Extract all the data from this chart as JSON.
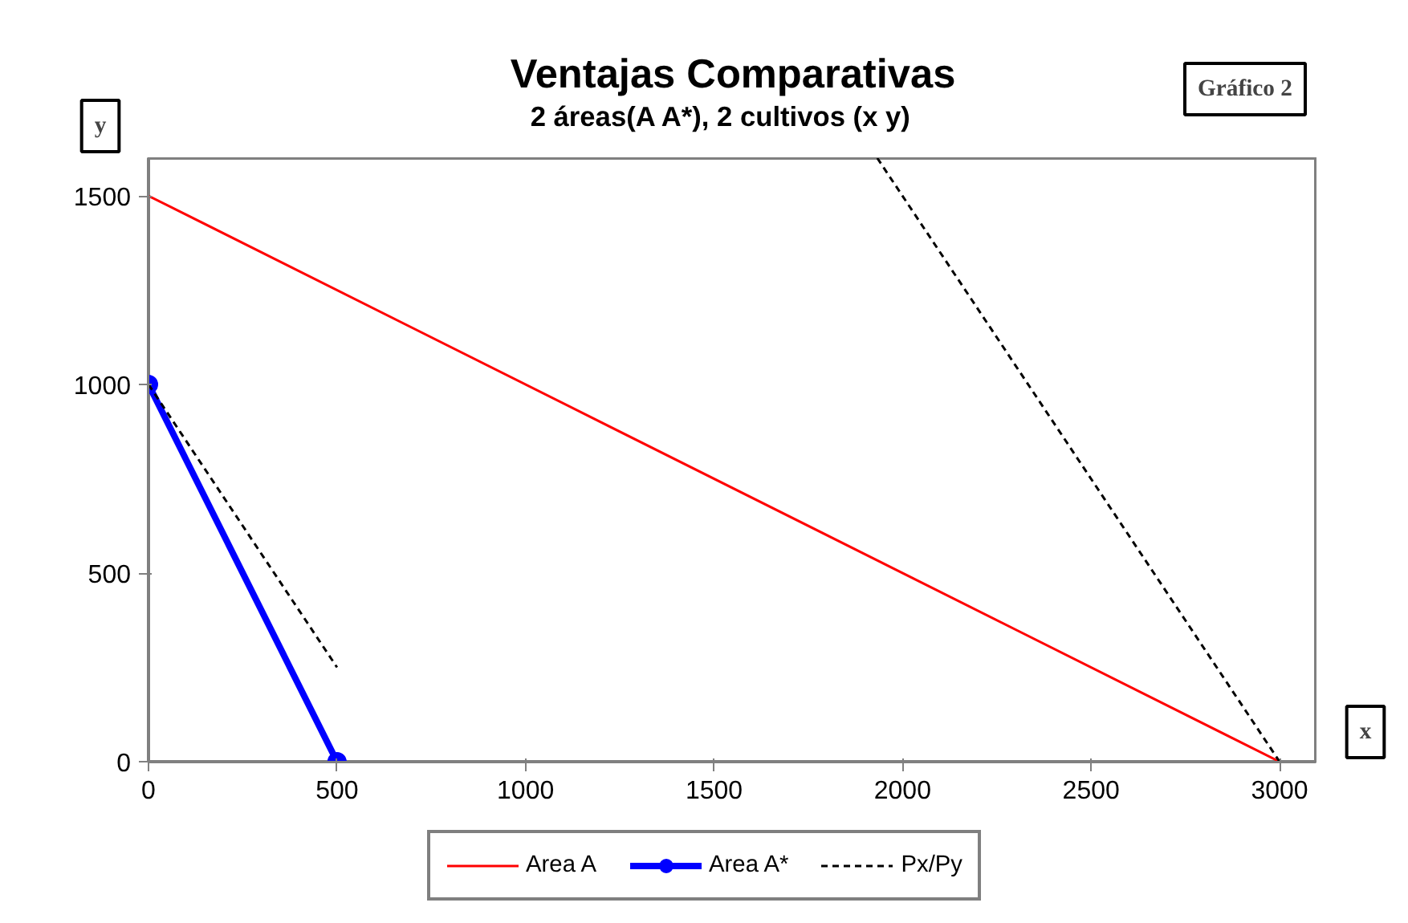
{
  "chart_data": {
    "type": "line",
    "title": "Ventajas Comparativas",
    "subtitle": "2 áreas(A  A*),  2 cultivos (x  y)",
    "xlabel": "x",
    "ylabel": "y",
    "annotations": [
      "Gráfico 2"
    ],
    "xlim": [
      0,
      3100
    ],
    "ylim": [
      0,
      1600
    ],
    "xticks": [
      0,
      500,
      1000,
      1500,
      2000,
      2500,
      3000
    ],
    "yticks": [
      0,
      500,
      1000,
      1500
    ],
    "grid": false,
    "legend": "bottom",
    "series": [
      {
        "name": "Area A",
        "color": "#ff0000",
        "x": [
          0,
          3000
        ],
        "values": [
          1500,
          0
        ],
        "line_style": "solid",
        "marker": "none"
      },
      {
        "name": "Area A*",
        "color": "#0000ff",
        "x": [
          0,
          500
        ],
        "values": [
          1000,
          0
        ],
        "line_style": "solid",
        "marker": "circle"
      },
      {
        "name": "Px/Py",
        "color": "#000000",
        "x": [
          0,
          500,
          1000,
          1933,
          3000
        ],
        "values": [
          1000,
          250,
          null,
          1600,
          0
        ],
        "line_style": "dashed",
        "marker": "none"
      }
    ]
  }
}
